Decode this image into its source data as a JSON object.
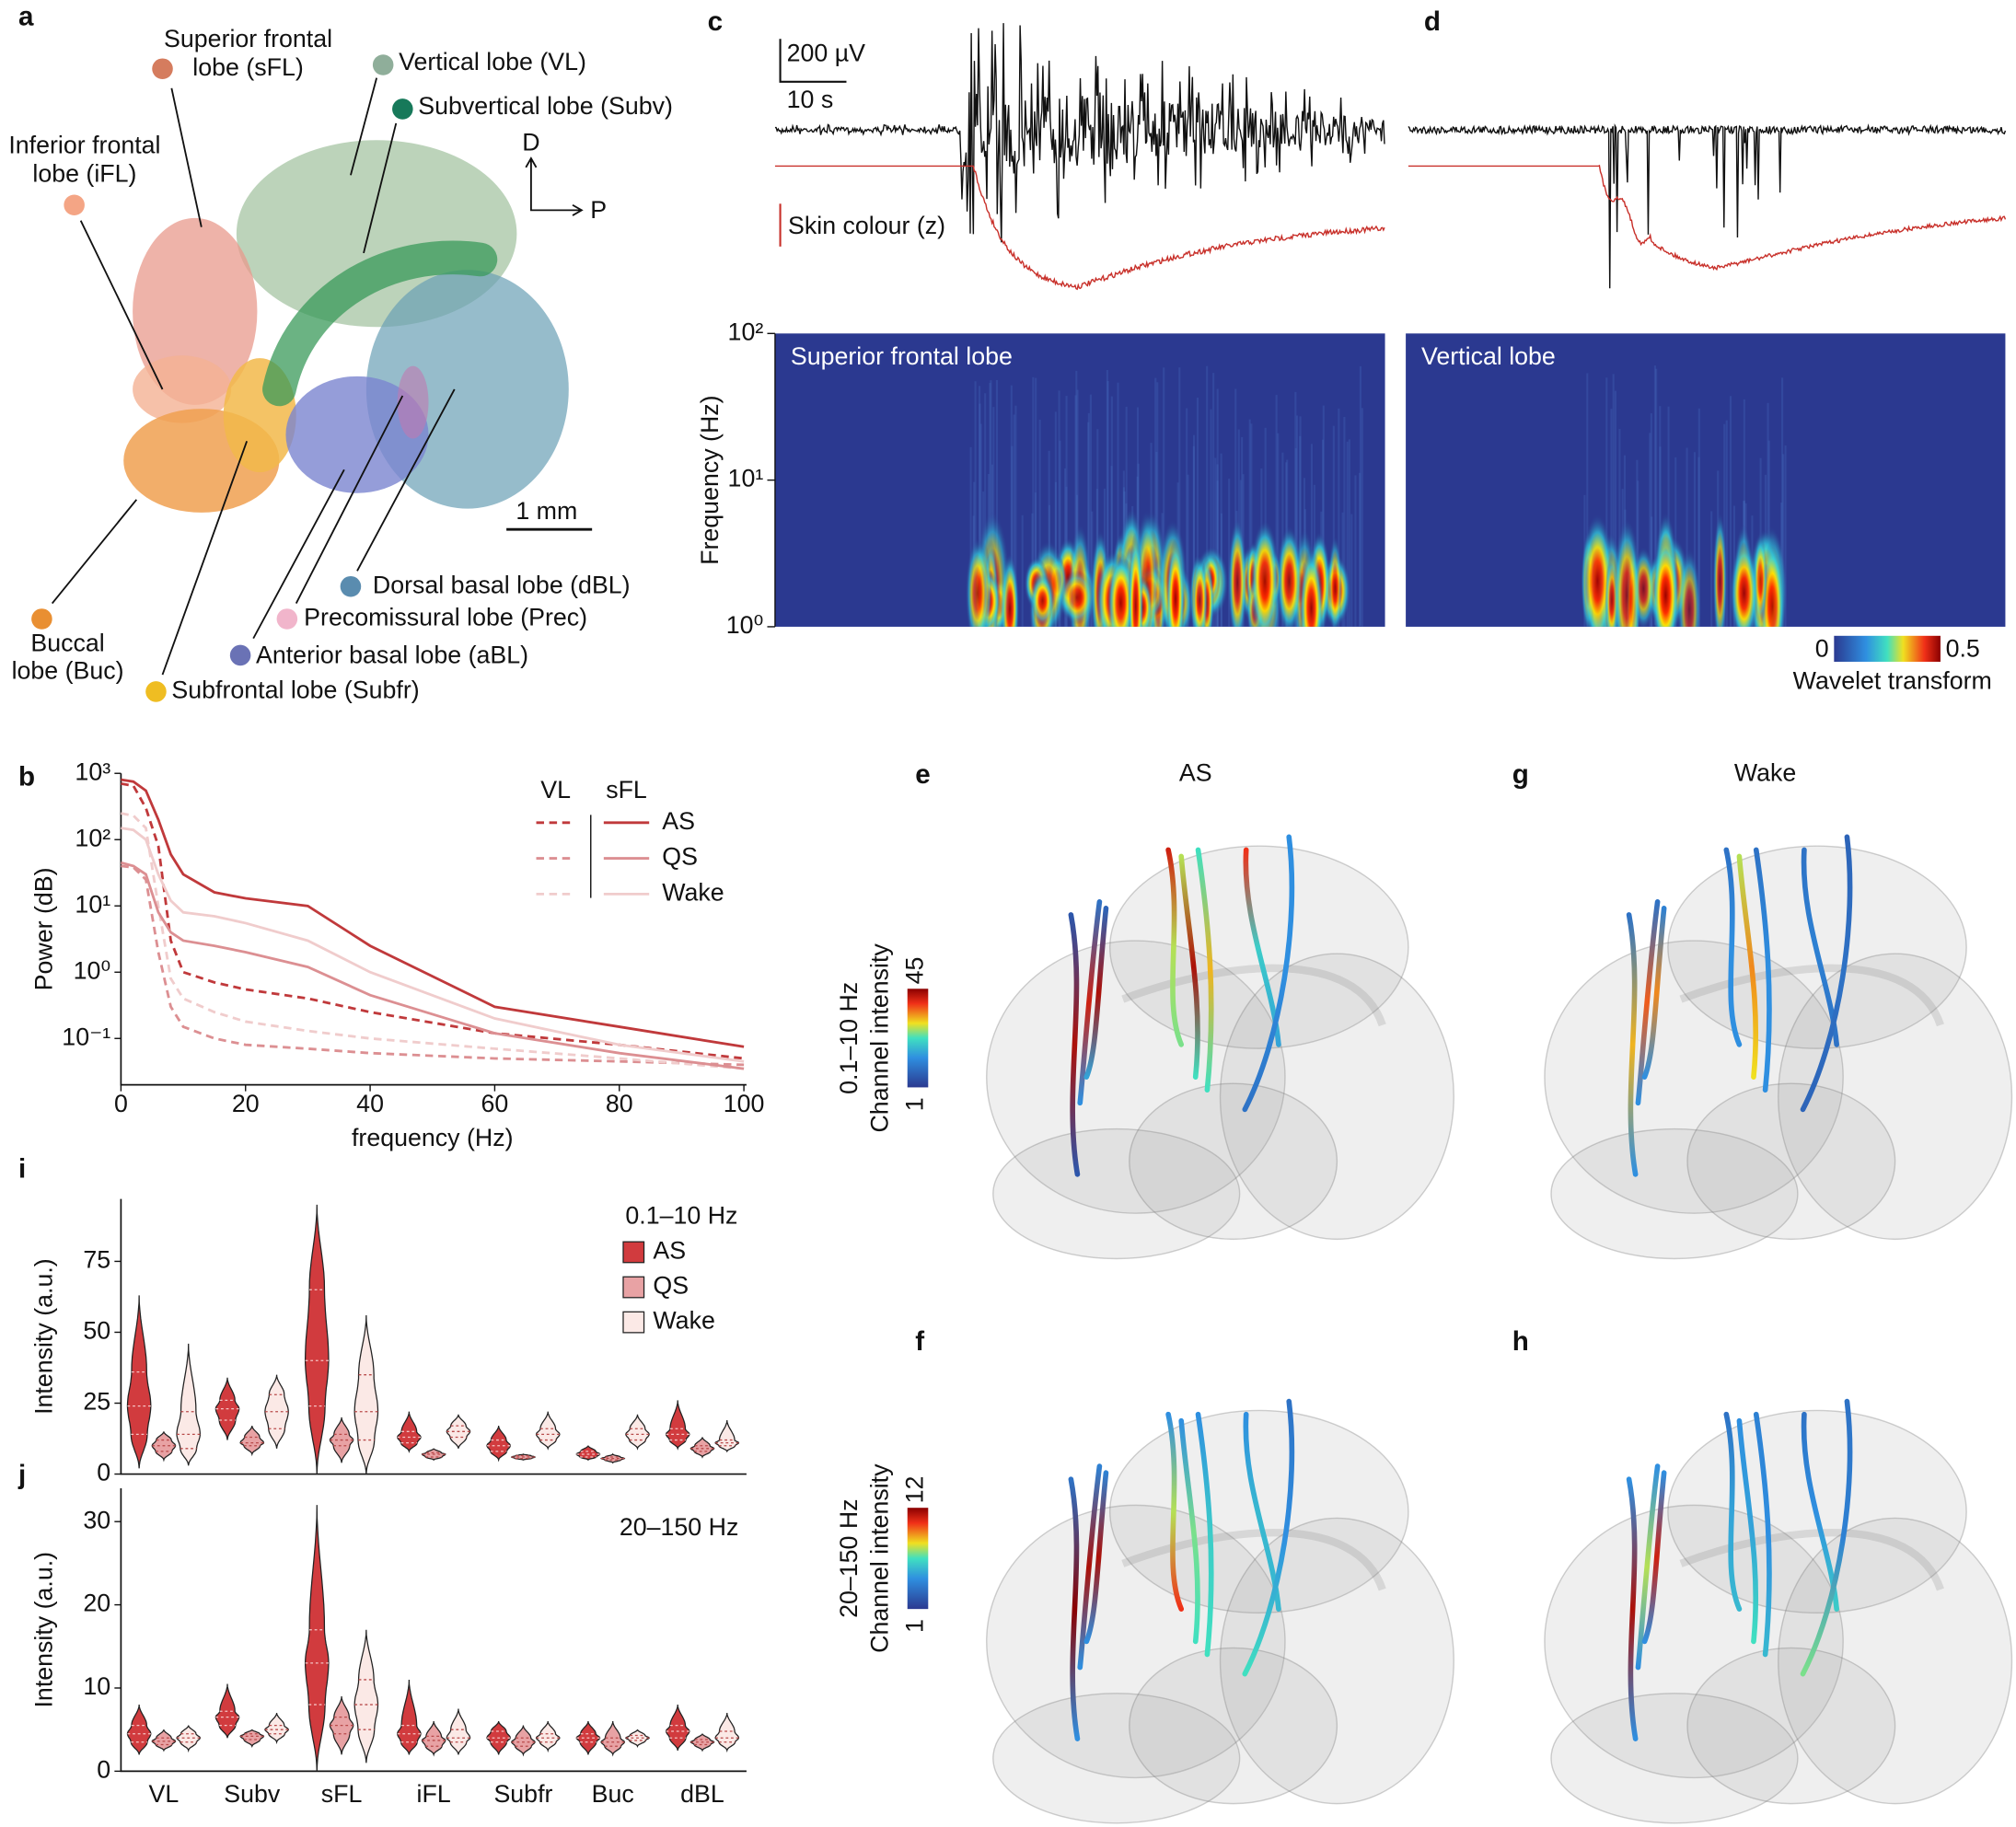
{
  "panel_labels": [
    "a",
    "b",
    "c",
    "d",
    "e",
    "f",
    "g",
    "h",
    "i",
    "j"
  ],
  "panel_a": {
    "lobes": [
      {
        "lines": [
          "Superior frontal",
          "lobe (sFL)"
        ],
        "color": "#d57c5e"
      },
      {
        "lines": [
          "Vertical lobe (VL)"
        ],
        "color": "#8fae9a"
      },
      {
        "lines": [
          "Subvertical lobe (Subv)"
        ],
        "color": "#17795a"
      },
      {
        "lines": [
          "Inferior frontal",
          "lobe (iFL)"
        ],
        "color": "#f4a585"
      },
      {
        "lines": [
          "Buccal",
          "lobe (Buc)"
        ],
        "color": "#e98f32"
      },
      {
        "lines": [
          "Subfrontal lobe (Subfr)"
        ],
        "color": "#efbd22"
      },
      {
        "lines": [
          "Anterior basal lobe (aBL)"
        ],
        "color": "#6a72b5"
      },
      {
        "lines": [
          "Precomissural lobe (Prec)"
        ],
        "color": "#f1b5cb"
      },
      {
        "lines": [
          "Dorsal basal lobe (dBL)"
        ],
        "color": "#5a8caf"
      }
    ],
    "directions": [
      "D",
      "P"
    ],
    "scale_bar": "1 mm"
  },
  "panel_c": {
    "voltage_scale": "200 µV",
    "time_scale": "10 s",
    "skin_label": "Skin colour (z)",
    "spectrogram_title": "Superior frontal lobe",
    "y_label": "Frequency (Hz)",
    "ylim": [
      1,
      100
    ],
    "yticks": [
      {
        "value": 1,
        "label": "10⁰"
      },
      {
        "value": 10,
        "label": "10¹"
      },
      {
        "value": 100,
        "label": "10²"
      }
    ]
  },
  "panel_d": {
    "spectrogram_title": "Vertical lobe"
  },
  "wavelet_colorbar": {
    "ticks": [
      0,
      0.5
    ],
    "label": "Wavelet transform"
  },
  "panels_e_h": {
    "titles": [
      "AS",
      "Wake"
    ],
    "colorbars": [
      {
        "band": "0.1–10 Hz",
        "label": "Channel intensity",
        "ticks": [
          1,
          45
        ]
      },
      {
        "band": "20–150 Hz",
        "label": "Channel intensity",
        "ticks": [
          1,
          12
        ]
      }
    ]
  },
  "chart_data": [
    {
      "type": "line",
      "x_label": "frequency (Hz)",
      "y_label": "Power (dB)",
      "log_y": true,
      "x": [
        0,
        2,
        4,
        6,
        8,
        10,
        15,
        20,
        30,
        40,
        60,
        80,
        100
      ],
      "xlim": [
        0,
        100
      ],
      "xticks": [
        0,
        20,
        40,
        60,
        80,
        100
      ],
      "ylim": [
        0.02,
        1000
      ],
      "yticks": [
        {
          "value": 0.1,
          "label": "10⁻¹"
        },
        {
          "value": 1,
          "label": "10⁰"
        },
        {
          "value": 10,
          "label": "10¹"
        },
        {
          "value": 100,
          "label": "10²"
        },
        {
          "value": 1000,
          "label": "10³"
        }
      ],
      "legend_groups": [
        "VL",
        "sFL"
      ],
      "group_dash": [
        "dashed",
        "solid"
      ],
      "series": [
        {
          "name": "AS",
          "color": "#c0393b",
          "VL": [
            700,
            650,
            300,
            80,
            3,
            1,
            0.7,
            0.55,
            0.4,
            0.25,
            0.12,
            0.08,
            0.05
          ],
          "sFL": [
            800,
            750,
            550,
            200,
            60,
            30,
            16,
            13,
            10,
            2.5,
            0.3,
            0.15,
            0.075
          ]
        },
        {
          "name": "QS",
          "color": "#dc8f92",
          "VL": [
            40,
            38,
            25,
            2,
            0.3,
            0.15,
            0.1,
            0.08,
            0.07,
            0.06,
            0.05,
            0.045,
            0.04
          ],
          "sFL": [
            45,
            40,
            30,
            8,
            4,
            3,
            2.5,
            2,
            1.2,
            0.45,
            0.12,
            0.06,
            0.035
          ]
        },
        {
          "name": "Wake",
          "color": "#f0cccc",
          "VL": [
            250,
            230,
            150,
            10,
            0.8,
            0.4,
            0.25,
            0.18,
            0.13,
            0.1,
            0.07,
            0.05,
            0.035
          ],
          "sFL": [
            150,
            140,
            100,
            30,
            12,
            8,
            7,
            5.5,
            3,
            1,
            0.2,
            0.08,
            0.045
          ]
        }
      ]
    },
    {
      "type": "violin",
      "y_label": "Intensity (a.u.)",
      "legend_title": "0.1–10 Hz",
      "ylim": [
        0,
        97
      ],
      "yticks": [
        0,
        25,
        50,
        75
      ],
      "series": [
        {
          "name": "AS",
          "color": "#d13b3e",
          "min": [
            2,
            12,
            0,
            8,
            5,
            5,
            9
          ],
          "q1": [
            14,
            19,
            24,
            11,
            8,
            6,
            12
          ],
          "median": [
            24,
            23,
            40,
            13,
            10,
            7,
            14
          ],
          "q3": [
            36,
            26,
            65,
            15,
            12,
            8,
            16
          ],
          "max": [
            63,
            34,
            95,
            22,
            17,
            10,
            26
          ]
        },
        {
          "name": "QS",
          "color": "#e8a2a4",
          "min": [
            5,
            7,
            4,
            5,
            5,
            4,
            6
          ],
          "q1": [
            8,
            10,
            10,
            6,
            5.5,
            5,
            8
          ],
          "median": [
            10,
            11,
            12,
            7,
            6,
            5.5,
            9
          ],
          "q3": [
            12,
            13,
            14,
            7.5,
            6.5,
            6,
            10
          ],
          "max": [
            15,
            17,
            20,
            9,
            7,
            7,
            13
          ]
        },
        {
          "name": "Wake",
          "color": "#fbe9e6",
          "min": [
            3,
            9,
            0,
            9,
            9,
            9,
            8
          ],
          "q1": [
            9,
            16,
            12,
            13,
            12,
            12,
            10
          ],
          "median": [
            14,
            22,
            22,
            15,
            14,
            14,
            11
          ],
          "q3": [
            22,
            28,
            35,
            17,
            16,
            16,
            12
          ],
          "max": [
            46,
            35,
            56,
            21,
            22,
            21,
            19
          ]
        }
      ]
    },
    {
      "type": "violin",
      "y_label": "Intensity (a.u.)",
      "annotation": "20–150 Hz",
      "ylim": [
        0,
        34
      ],
      "yticks": [
        0,
        10,
        20,
        30
      ],
      "categories": [
        "VL",
        "Subv",
        "sFL",
        "iFL",
        "Subfr",
        "Buc",
        "dBL"
      ],
      "series": [
        {
          "name": "AS",
          "color": "#d13b3e",
          "min": [
            2,
            4,
            0,
            2,
            2,
            2,
            2.5
          ],
          "q1": [
            3.5,
            5.5,
            8,
            3.5,
            3.5,
            3.5,
            4
          ],
          "median": [
            4.5,
            6.5,
            13,
            4.5,
            4,
            4,
            4.8
          ],
          "q3": [
            5.5,
            7.2,
            17,
            5.5,
            4.8,
            4.5,
            5.5
          ],
          "max": [
            8,
            10.5,
            32,
            11,
            6,
            6,
            8
          ]
        },
        {
          "name": "QS",
          "color": "#e8a2a4",
          "min": [
            2.5,
            3,
            2,
            2,
            2,
            2,
            2.5
          ],
          "q1": [
            3.2,
            3.8,
            4.5,
            3,
            3,
            3,
            3.2
          ],
          "median": [
            3.6,
            4.2,
            5.5,
            3.7,
            3.5,
            3.5,
            3.5
          ],
          "q3": [
            4,
            4.5,
            6.5,
            4.2,
            4,
            4,
            3.8
          ],
          "max": [
            5,
            5,
            9,
            6,
            5.5,
            6,
            4.5
          ]
        },
        {
          "name": "Wake",
          "color": "#fbe9e6",
          "min": [
            2.5,
            3.5,
            1,
            2,
            2.5,
            3,
            2.5
          ],
          "q1": [
            3.5,
            4.5,
            5,
            3.5,
            3.5,
            3.7,
            3.5
          ],
          "median": [
            4,
            5,
            8,
            4,
            4,
            4,
            4
          ],
          "q3": [
            4.5,
            5.5,
            11,
            5,
            4.5,
            4.3,
            4.8
          ],
          "max": [
            5.5,
            7,
            17,
            7.5,
            6,
            5,
            7
          ]
        }
      ]
    }
  ]
}
